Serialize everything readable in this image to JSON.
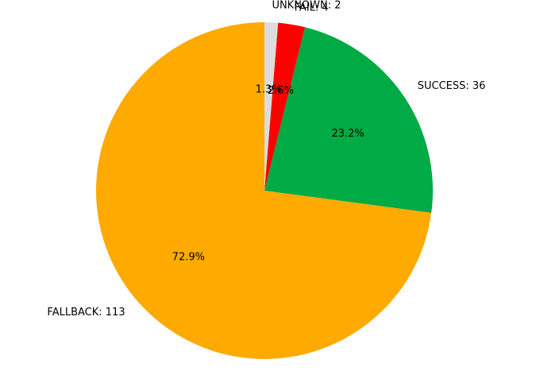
{
  "chart_data": {
    "type": "pie",
    "title": "",
    "start_angle_deg": 90,
    "direction": "counterclockwise",
    "slices": [
      {
        "label": "FALLBACK: 113",
        "category": "FALLBACK",
        "value": 113,
        "pct_label": "72.9%",
        "color": "#FFAA00"
      },
      {
        "label": "SUCCESS: 36",
        "category": "SUCCESS",
        "value": 36,
        "pct_label": "23.2%",
        "color": "#00AA44"
      },
      {
        "label": "FAIL: 4",
        "category": "FAIL",
        "value": 4,
        "pct_label": "2.6%",
        "color": "#FF0000"
      },
      {
        "label": "UNKNOWN: 2",
        "category": "UNKNOWN",
        "value": 2,
        "pct_label": "1.3%",
        "color": "#DDDDDD"
      }
    ]
  }
}
